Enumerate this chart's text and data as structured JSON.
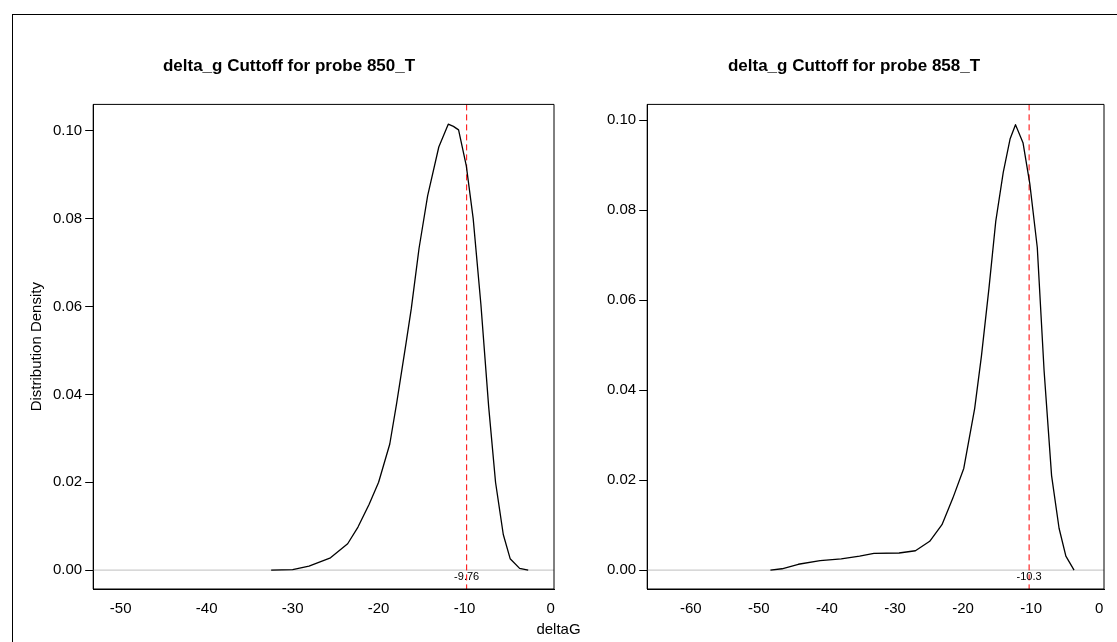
{
  "chart_data": [
    {
      "type": "line",
      "title": "delta_g Cuttoff for probe 850_T",
      "ylabel": "Distribution Density",
      "xlabel": "deltaG",
      "color": "#000000",
      "marker": "none",
      "legend": false,
      "grid": false,
      "x": [
        -32.5,
        -30.0,
        -28.1,
        -25.6,
        -23.6,
        -22.4,
        -21.1,
        -20.0,
        -18.7,
        -17.9,
        -16.8,
        -16.2,
        -15.3,
        -14.3,
        -13.0,
        -11.9,
        -11.3,
        -10.7,
        -9.8,
        -9.0,
        -8.1,
        -7.2,
        -6.4,
        -5.5,
        -4.7,
        -3.6,
        -2.6
      ],
      "values": [
        0.0,
        0.0001,
        0.0009,
        0.0028,
        0.006,
        0.0098,
        0.015,
        0.02,
        0.0287,
        0.038,
        0.0518,
        0.0595,
        0.0732,
        0.0852,
        0.0963,
        0.1015,
        0.101,
        0.1002,
        0.092,
        0.08,
        0.0604,
        0.0372,
        0.02,
        0.0081,
        0.0026,
        0.0004,
        0.0
      ],
      "xlim": [
        -53.2,
        0.4
      ],
      "xticks": [
        -50,
        -40,
        -30,
        -20,
        -10,
        0
      ],
      "ylim": [
        -0.0043,
        0.106
      ],
      "yticks": [
        {
          "value": 0,
          "label": "0.00"
        },
        {
          "value": 0.02,
          "label": "0.02"
        },
        {
          "value": 0.04,
          "label": "0.04"
        },
        {
          "value": 0.06,
          "label": "0.06"
        },
        {
          "value": 0.08,
          "label": "0.08"
        },
        {
          "value": 0.1,
          "label": "0.10"
        }
      ],
      "ref_lines": [
        {
          "axis": "y",
          "value": 0,
          "color": "#bebebe"
        },
        {
          "axis": "x",
          "value": -9.76,
          "label": "-9.76",
          "color": "#ff0000",
          "line_style": "dashed"
        }
      ]
    },
    {
      "type": "line",
      "title": "delta_g Cuttoff for probe 858_T",
      "color": "#000000",
      "marker": "none",
      "legend": false,
      "grid": false,
      "x": [
        -48.3,
        -46.6,
        -44.2,
        -41.0,
        -37.9,
        -35.2,
        -33.1,
        -29.4,
        -27.0,
        -24.9,
        -23.1,
        -21.5,
        -19.9,
        -18.3,
        -17.3,
        -16.2,
        -15.2,
        -14.1,
        -13.1,
        -12.3,
        -11.2,
        -10.2,
        -9.1,
        -8.1,
        -7.0,
        -5.9,
        -4.9,
        -3.7
      ],
      "values": [
        0.0,
        0.0003,
        0.0013,
        0.0021,
        0.0025,
        0.0031,
        0.0037,
        0.0038,
        0.0043,
        0.0064,
        0.0101,
        0.016,
        0.0226,
        0.0359,
        0.0476,
        0.0626,
        0.0775,
        0.0884,
        0.0958,
        0.099,
        0.095,
        0.0859,
        0.0717,
        0.0443,
        0.021,
        0.0093,
        0.0031,
        0.0
      ],
      "xlim": [
        -66.4,
        0.7
      ],
      "xticks": [
        -60,
        -50,
        -40,
        -30,
        -20,
        -10,
        0
      ],
      "ylim": [
        -0.0042,
        0.1035
      ],
      "yticks": [
        {
          "value": 0,
          "label": "0.00"
        },
        {
          "value": 0.02,
          "label": "0.02"
        },
        {
          "value": 0.04,
          "label": "0.04"
        },
        {
          "value": 0.06,
          "label": "0.06"
        },
        {
          "value": 0.08,
          "label": "0.08"
        },
        {
          "value": 0.1,
          "label": "0.10"
        }
      ],
      "ref_lines": [
        {
          "axis": "y",
          "value": 0,
          "color": "#bebebe"
        },
        {
          "axis": "x",
          "value": -10.3,
          "label": "-10.3",
          "color": "#ff0000",
          "line_style": "dashed"
        }
      ]
    }
  ]
}
